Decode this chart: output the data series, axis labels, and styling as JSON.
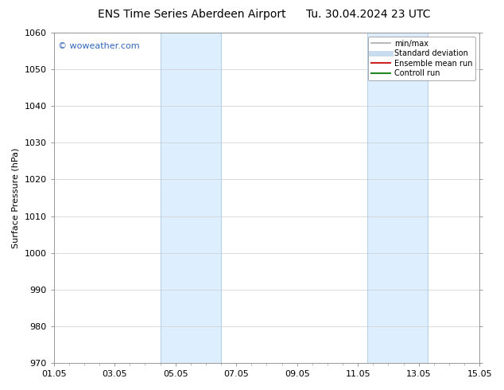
{
  "title_left": "ENS Time Series Aberdeen Airport",
  "title_right": "Tu. 30.04.2024 23 UTC",
  "ylabel": "Surface Pressure (hPa)",
  "ylim": [
    970,
    1060
  ],
  "yticks": [
    970,
    980,
    990,
    1000,
    1010,
    1020,
    1030,
    1040,
    1050,
    1060
  ],
  "xlim_start": 0,
  "xlim_end": 14,
  "xtick_labels": [
    "01.05",
    "03.05",
    "05.05",
    "07.05",
    "09.05",
    "11.05",
    "13.05",
    "15.05"
  ],
  "xtick_positions": [
    0,
    2,
    4,
    6,
    8,
    10,
    12,
    14
  ],
  "shaded_bands": [
    {
      "x_start": 3.5,
      "x_end": 5.5
    },
    {
      "x_start": 10.3,
      "x_end": 12.3
    }
  ],
  "band_color": "#ddeeff",
  "band_edge_color": "#b8d0e8",
  "watermark_text": "© woweather.com",
  "watermark_color": "#3366bb",
  "legend_entries": [
    {
      "label": "min/max",
      "color": "#aaaaaa",
      "lw": 1.2,
      "style": "solid"
    },
    {
      "label": "Standard deviation",
      "color": "#c8dcf0",
      "lw": 5,
      "style": "solid"
    },
    {
      "label": "Ensemble mean run",
      "color": "#cc2222",
      "lw": 1.5,
      "style": "solid"
    },
    {
      "label": "Controll run",
      "color": "#228822",
      "lw": 1.5,
      "style": "solid"
    }
  ],
  "bg_color": "#ffffff",
  "grid_color": "#cccccc",
  "title_fontsize": 10,
  "axis_fontsize": 8,
  "tick_fontsize": 8,
  "legend_fontsize": 7,
  "watermark_fontsize": 8
}
